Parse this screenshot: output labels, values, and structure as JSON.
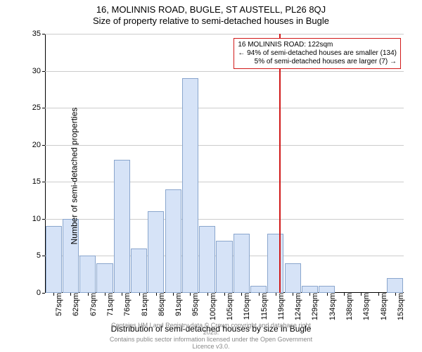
{
  "title": "16, MOLINNIS ROAD, BUGLE, ST AUSTELL, PL26 8QJ",
  "subtitle": "Size of property relative to semi-detached houses in Bugle",
  "chart": {
    "type": "bar",
    "y_label": "Number of semi-detached properties",
    "x_label": "Distribution of semi-detached houses by size in Bugle",
    "ylim": [
      0,
      35
    ],
    "ytick_step": 5,
    "yticks": [
      0,
      5,
      10,
      15,
      20,
      25,
      30,
      35
    ],
    "xticks": [
      "57sqm",
      "62sqm",
      "67sqm",
      "71sqm",
      "76sqm",
      "81sqm",
      "86sqm",
      "91sqm",
      "95sqm",
      "100sqm",
      "105sqm",
      "110sqm",
      "115sqm",
      "119sqm",
      "124sqm",
      "129sqm",
      "134sqm",
      "138sqm",
      "143sqm",
      "148sqm",
      "153sqm"
    ],
    "values": [
      9,
      10,
      5,
      4,
      18,
      6,
      11,
      14,
      29,
      9,
      7,
      8,
      1,
      8,
      4,
      1,
      1,
      0,
      0,
      0,
      2
    ],
    "bar_fill": "#d6e3f7",
    "bar_border": "#8aa6cd",
    "bar_width_ratio": 0.95,
    "grid_color": "#cccccc",
    "background_color": "#ffffff",
    "marker": {
      "position_category_index": 13.7,
      "color": "#d11919",
      "label_lines": [
        "16 MOLINNIS ROAD: 122sqm",
        "← 94% of semi-detached houses are smaller (134)",
        "5% of semi-detached houses are larger (7) →"
      ],
      "border_color": "#d11919"
    }
  },
  "footer": {
    "line1": "Contains HM Land Registry data © Crown copyright and database right 2025.",
    "line2": "Contains public sector information licensed under the Open Government Licence v3.0."
  }
}
